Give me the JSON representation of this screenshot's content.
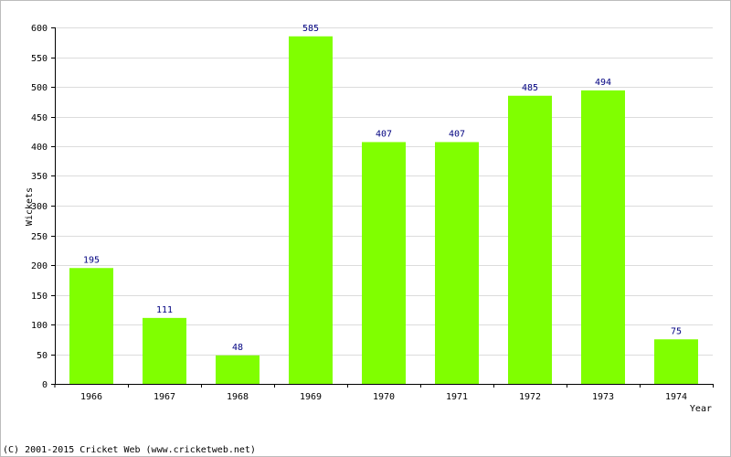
{
  "chart_data": {
    "type": "bar",
    "categories": [
      "1966",
      "1967",
      "1968",
      "1969",
      "1970",
      "1971",
      "1972",
      "1973",
      "1974"
    ],
    "values": [
      195,
      111,
      48,
      585,
      407,
      407,
      485,
      494,
      75
    ],
    "xlabel": "Year",
    "ylabel": "Wickets",
    "ylim": [
      0,
      600
    ],
    "yticks": [
      0,
      50,
      100,
      150,
      200,
      250,
      300,
      350,
      400,
      450,
      500,
      550,
      600
    ],
    "grid": "horizontal",
    "bar_color": "#80ff00",
    "value_label_color": "#000080"
  },
  "footer": {
    "copyright": "(C) 2001-2015 Cricket Web (www.cricketweb.net)"
  }
}
